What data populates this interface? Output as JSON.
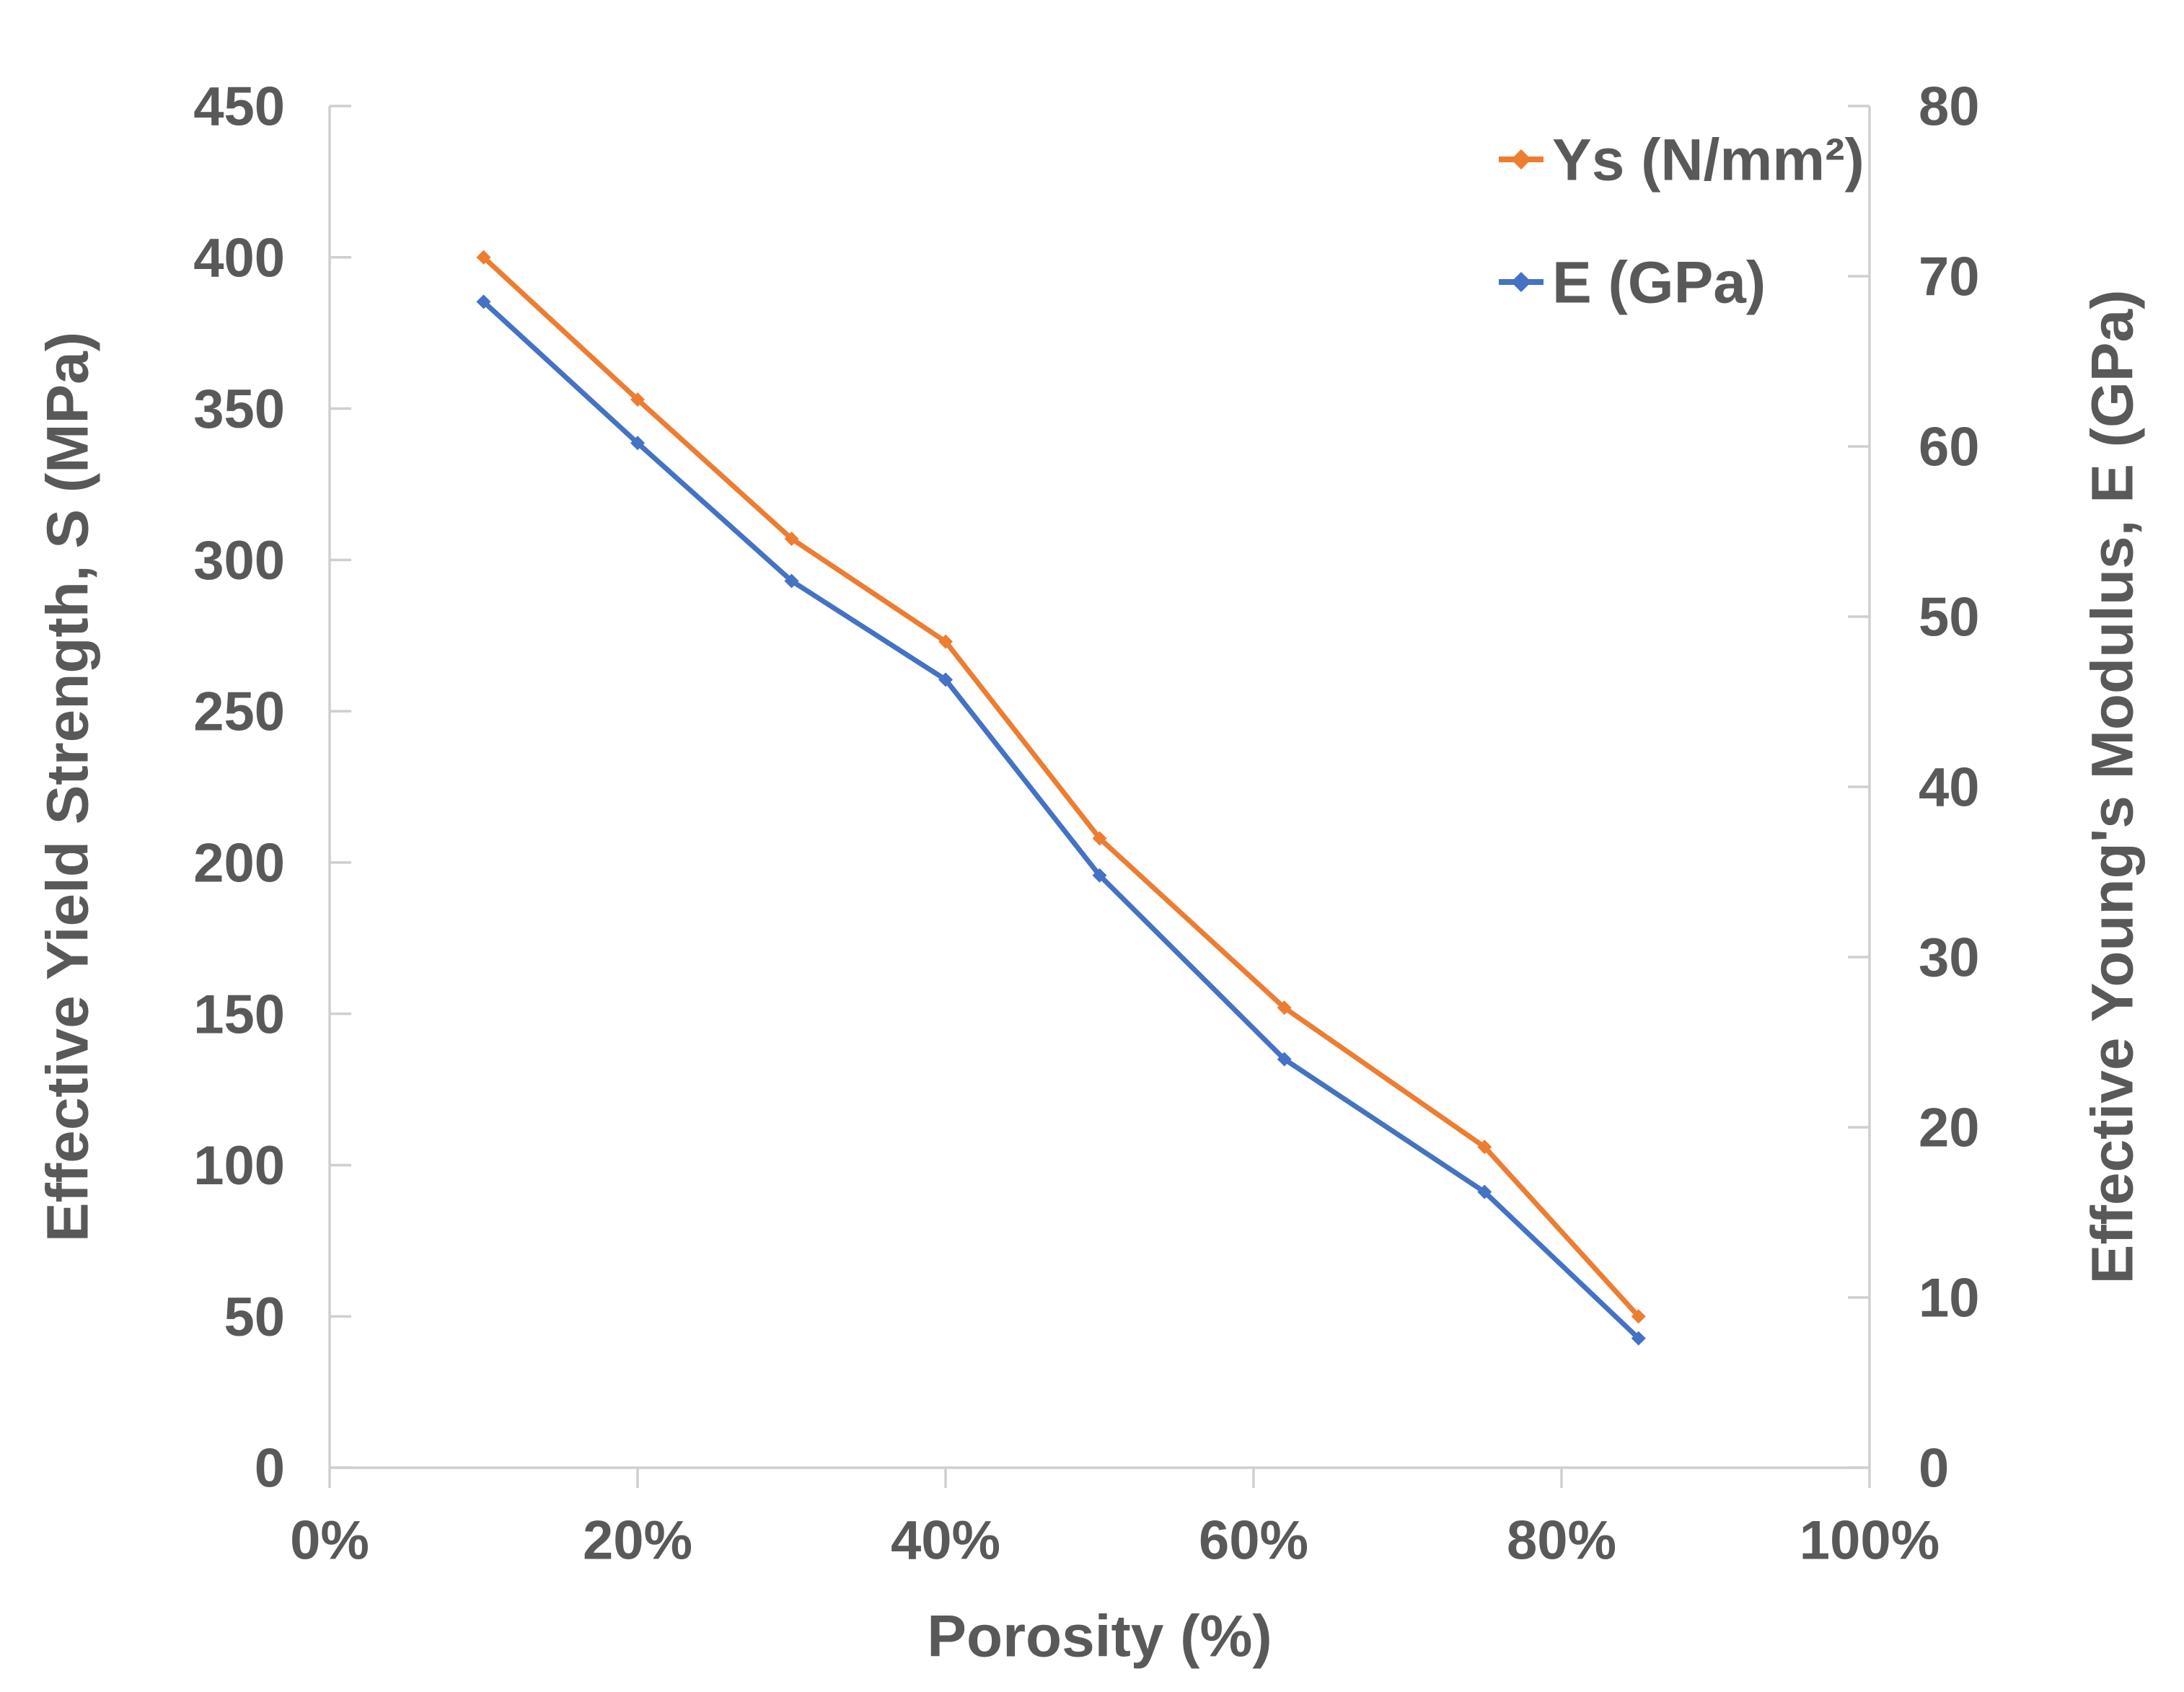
{
  "chart_data": {
    "type": "line",
    "title": "",
    "xlabel": "Porosity (%)",
    "x_axis": {
      "range": [
        0,
        100
      ],
      "tick_labels": [
        "0%",
        "20%",
        "40%",
        "60%",
        "80%",
        "100%"
      ],
      "unit": "%"
    },
    "left_axis": {
      "label": "Effective Yield Strength, S (MPa)",
      "range": [
        0,
        450
      ],
      "tick_labels": [
        "0",
        "50",
        "100",
        "150",
        "200",
        "250",
        "300",
        "350",
        "400",
        "450"
      ]
    },
    "right_axis": {
      "label": "Effective Young's Modulus, E (GPa)",
      "range": [
        0,
        80
      ],
      "tick_labels": [
        "0",
        "10",
        "20",
        "30",
        "40",
        "50",
        "60",
        "70",
        "80"
      ]
    },
    "x": [
      10,
      20,
      30,
      40,
      50,
      62,
      75,
      85
    ],
    "series": [
      {
        "name": "Ys (N/mm²)",
        "axis": "left",
        "color": "#ED7D31",
        "marker": "diamond",
        "values": [
          400,
          353,
          307,
          273,
          208,
          152,
          106,
          50
        ]
      },
      {
        "name": "E (GPa)",
        "axis": "right",
        "color": "#4472C4",
        "marker": "diamond",
        "values": [
          68.5,
          60.2,
          52.1,
          46.3,
          34.8,
          24,
          16.2,
          7.6
        ]
      }
    ],
    "legend_position": "inside-top-right",
    "grid": false,
    "colors": {
      "text": "#595959",
      "axis_line": "#D0CECE",
      "background": "#FFFFFF"
    }
  }
}
